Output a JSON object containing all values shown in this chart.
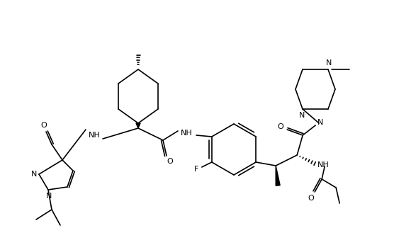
{
  "bg_color": "#ffffff",
  "line_color": "#000000",
  "lw": 1.2,
  "blw": 2.8,
  "fig_width": 5.56,
  "fig_height": 3.46,
  "dpi": 100,
  "xlim": [
    0,
    556
  ],
  "ylim": [
    0,
    346
  ]
}
